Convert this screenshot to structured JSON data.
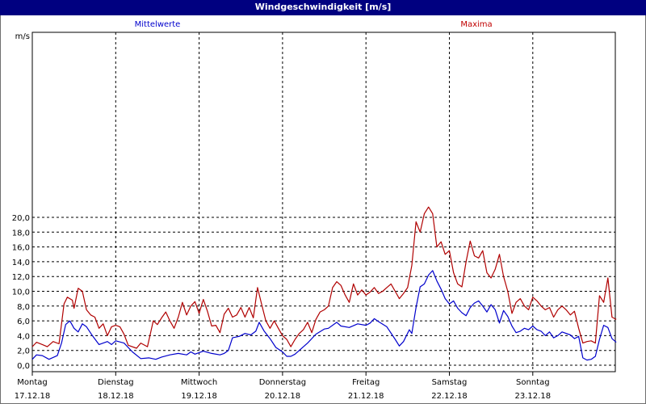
{
  "window": {
    "title": "Windgeschwindigkeit [m/s]"
  },
  "chart_data": {
    "type": "line",
    "title": "Windgeschwindigkeit [m/s]",
    "ylabel": "m/s",
    "ylim": [
      0,
      22
    ],
    "xlim": [
      0,
      7
    ],
    "grid": true,
    "legend": [
      "Mittelwerte",
      "Maxima"
    ],
    "ytick_values": [
      0,
      2,
      4,
      6,
      8,
      10,
      12,
      14,
      16,
      18,
      20
    ],
    "ytick_labels": [
      "0,0",
      "2,0",
      "4,0",
      "6,0",
      "8,0",
      "10,0",
      "12,0",
      "14,0",
      "16,0",
      "18,0",
      "20,0"
    ],
    "xtick_values": [
      0,
      1,
      2,
      3,
      4,
      5,
      6
    ],
    "xtick_days": [
      "Montag",
      "Dienstag",
      "Mittwoch",
      "Donnerstag",
      "Freitag",
      "Samstag",
      "Sonntag"
    ],
    "xtick_dates": [
      "17.12.18",
      "18.12.18",
      "19.12.18",
      "20.12.18",
      "21.12.18",
      "22.12.18",
      "23.12.18"
    ],
    "series": [
      {
        "name": "Mittelwerte",
        "color": "#0000cc",
        "points": [
          [
            0.0,
            0.8
          ],
          [
            0.05,
            1.4
          ],
          [
            0.12,
            1.3
          ],
          [
            0.2,
            0.8
          ],
          [
            0.3,
            1.3
          ],
          [
            0.35,
            3.0
          ],
          [
            0.4,
            5.5
          ],
          [
            0.45,
            6.0
          ],
          [
            0.5,
            5.0
          ],
          [
            0.55,
            4.5
          ],
          [
            0.6,
            5.6
          ],
          [
            0.65,
            5.2
          ],
          [
            0.72,
            4.0
          ],
          [
            0.8,
            2.8
          ],
          [
            0.9,
            3.2
          ],
          [
            0.95,
            2.8
          ],
          [
            1.0,
            3.3
          ],
          [
            1.1,
            3.0
          ],
          [
            1.2,
            1.8
          ],
          [
            1.3,
            0.9
          ],
          [
            1.4,
            1.0
          ],
          [
            1.48,
            0.8
          ],
          [
            1.55,
            1.1
          ],
          [
            1.65,
            1.4
          ],
          [
            1.75,
            1.6
          ],
          [
            1.85,
            1.4
          ],
          [
            1.9,
            1.8
          ],
          [
            1.95,
            1.5
          ],
          [
            2.05,
            1.9
          ],
          [
            2.15,
            1.6
          ],
          [
            2.25,
            1.4
          ],
          [
            2.3,
            1.6
          ],
          [
            2.35,
            2.0
          ],
          [
            2.4,
            3.7
          ],
          [
            2.48,
            3.9
          ],
          [
            2.55,
            4.3
          ],
          [
            2.62,
            4.1
          ],
          [
            2.68,
            4.6
          ],
          [
            2.72,
            5.8
          ],
          [
            2.78,
            4.6
          ],
          [
            2.85,
            3.6
          ],
          [
            2.92,
            2.4
          ],
          [
            3.0,
            1.8
          ],
          [
            3.05,
            1.2
          ],
          [
            3.1,
            1.2
          ],
          [
            3.15,
            1.5
          ],
          [
            3.2,
            2.0
          ],
          [
            3.3,
            3.0
          ],
          [
            3.4,
            4.2
          ],
          [
            3.5,
            4.9
          ],
          [
            3.55,
            5.0
          ],
          [
            3.65,
            5.8
          ],
          [
            3.7,
            5.3
          ],
          [
            3.8,
            5.1
          ],
          [
            3.9,
            5.6
          ],
          [
            4.0,
            5.4
          ],
          [
            4.05,
            5.7
          ],
          [
            4.1,
            6.3
          ],
          [
            4.15,
            5.9
          ],
          [
            4.25,
            5.2
          ],
          [
            4.35,
            3.5
          ],
          [
            4.4,
            2.6
          ],
          [
            4.45,
            3.2
          ],
          [
            4.52,
            4.8
          ],
          [
            4.55,
            4.3
          ],
          [
            4.6,
            7.8
          ],
          [
            4.65,
            10.6
          ],
          [
            4.7,
            11.0
          ],
          [
            4.75,
            12.2
          ],
          [
            4.8,
            12.8
          ],
          [
            4.85,
            11.4
          ],
          [
            4.9,
            10.3
          ],
          [
            4.95,
            9.0
          ],
          [
            5.0,
            8.3
          ],
          [
            5.05,
            8.7
          ],
          [
            5.1,
            7.7
          ],
          [
            5.15,
            7.1
          ],
          [
            5.2,
            6.7
          ],
          [
            5.25,
            7.8
          ],
          [
            5.3,
            8.4
          ],
          [
            5.35,
            8.7
          ],
          [
            5.4,
            8.0
          ],
          [
            5.45,
            7.2
          ],
          [
            5.5,
            8.2
          ],
          [
            5.55,
            7.5
          ],
          [
            5.6,
            5.7
          ],
          [
            5.65,
            7.4
          ],
          [
            5.7,
            6.6
          ],
          [
            5.75,
            5.3
          ],
          [
            5.8,
            4.4
          ],
          [
            5.85,
            4.6
          ],
          [
            5.9,
            5.0
          ],
          [
            5.95,
            4.8
          ],
          [
            6.0,
            5.3
          ],
          [
            6.05,
            4.8
          ],
          [
            6.1,
            4.6
          ],
          [
            6.15,
            4.0
          ],
          [
            6.2,
            4.5
          ],
          [
            6.25,
            3.7
          ],
          [
            6.3,
            4.0
          ],
          [
            6.35,
            4.5
          ],
          [
            6.45,
            4.1
          ],
          [
            6.5,
            3.6
          ],
          [
            6.55,
            3.9
          ],
          [
            6.6,
            1.0
          ],
          [
            6.65,
            0.7
          ],
          [
            6.7,
            0.8
          ],
          [
            6.75,
            1.2
          ],
          [
            6.8,
            3.5
          ],
          [
            6.85,
            5.4
          ],
          [
            6.9,
            5.1
          ],
          [
            6.95,
            3.6
          ],
          [
            7.0,
            3.1
          ]
        ]
      },
      {
        "name": "Maxima",
        "color": "#b00000",
        "points": [
          [
            0.0,
            2.5
          ],
          [
            0.05,
            3.1
          ],
          [
            0.12,
            2.8
          ],
          [
            0.18,
            2.5
          ],
          [
            0.25,
            3.2
          ],
          [
            0.32,
            2.9
          ],
          [
            0.38,
            8.3
          ],
          [
            0.42,
            9.2
          ],
          [
            0.48,
            8.8
          ],
          [
            0.5,
            7.7
          ],
          [
            0.55,
            10.4
          ],
          [
            0.6,
            10.0
          ],
          [
            0.65,
            7.5
          ],
          [
            0.7,
            6.8
          ],
          [
            0.75,
            6.5
          ],
          [
            0.8,
            5.0
          ],
          [
            0.85,
            5.6
          ],
          [
            0.9,
            4.0
          ],
          [
            0.95,
            5.2
          ],
          [
            1.0,
            5.4
          ],
          [
            1.05,
            5.2
          ],
          [
            1.1,
            4.2
          ],
          [
            1.15,
            2.7
          ],
          [
            1.25,
            2.3
          ],
          [
            1.3,
            3.0
          ],
          [
            1.38,
            2.5
          ],
          [
            1.45,
            6.0
          ],
          [
            1.5,
            5.5
          ],
          [
            1.55,
            6.4
          ],
          [
            1.6,
            7.2
          ],
          [
            1.65,
            6.0
          ],
          [
            1.7,
            5.0
          ],
          [
            1.75,
            6.5
          ],
          [
            1.8,
            8.5
          ],
          [
            1.85,
            6.8
          ],
          [
            1.9,
            8.0
          ],
          [
            1.95,
            8.6
          ],
          [
            2.0,
            7.0
          ],
          [
            2.05,
            8.9
          ],
          [
            2.1,
            7.3
          ],
          [
            2.15,
            5.3
          ],
          [
            2.2,
            5.4
          ],
          [
            2.25,
            4.4
          ],
          [
            2.3,
            6.9
          ],
          [
            2.35,
            7.7
          ],
          [
            2.4,
            6.5
          ],
          [
            2.45,
            6.8
          ],
          [
            2.5,
            7.8
          ],
          [
            2.55,
            6.5
          ],
          [
            2.6,
            7.8
          ],
          [
            2.65,
            6.4
          ],
          [
            2.7,
            10.5
          ],
          [
            2.75,
            8.2
          ],
          [
            2.8,
            6.0
          ],
          [
            2.85,
            5.0
          ],
          [
            2.9,
            6.0
          ],
          [
            2.95,
            5.0
          ],
          [
            3.0,
            4.0
          ],
          [
            3.05,
            3.5
          ],
          [
            3.1,
            2.5
          ],
          [
            3.15,
            3.5
          ],
          [
            3.2,
            4.3
          ],
          [
            3.25,
            4.8
          ],
          [
            3.3,
            5.8
          ],
          [
            3.35,
            4.4
          ],
          [
            3.4,
            6.2
          ],
          [
            3.45,
            7.2
          ],
          [
            3.5,
            7.5
          ],
          [
            3.55,
            8.0
          ],
          [
            3.6,
            10.5
          ],
          [
            3.65,
            11.3
          ],
          [
            3.7,
            10.8
          ],
          [
            3.75,
            9.5
          ],
          [
            3.8,
            8.5
          ],
          [
            3.85,
            11.0
          ],
          [
            3.9,
            9.5
          ],
          [
            3.95,
            10.2
          ],
          [
            4.0,
            9.5
          ],
          [
            4.05,
            9.9
          ],
          [
            4.1,
            10.5
          ],
          [
            4.15,
            9.7
          ],
          [
            4.2,
            10.0
          ],
          [
            4.25,
            10.5
          ],
          [
            4.3,
            11.0
          ],
          [
            4.35,
            10.0
          ],
          [
            4.4,
            9.0
          ],
          [
            4.45,
            9.7
          ],
          [
            4.5,
            10.5
          ],
          [
            4.55,
            13.5
          ],
          [
            4.6,
            19.4
          ],
          [
            4.65,
            18.0
          ],
          [
            4.7,
            20.5
          ],
          [
            4.75,
            21.4
          ],
          [
            4.8,
            20.5
          ],
          [
            4.85,
            16.0
          ],
          [
            4.9,
            16.7
          ],
          [
            4.95,
            15.0
          ],
          [
            5.0,
            15.5
          ],
          [
            5.05,
            12.5
          ],
          [
            5.1,
            11.0
          ],
          [
            5.15,
            10.6
          ],
          [
            5.2,
            14.0
          ],
          [
            5.25,
            16.8
          ],
          [
            5.3,
            14.8
          ],
          [
            5.35,
            14.5
          ],
          [
            5.4,
            15.5
          ],
          [
            5.45,
            12.5
          ],
          [
            5.5,
            11.8
          ],
          [
            5.55,
            13.0
          ],
          [
            5.6,
            15.0
          ],
          [
            5.65,
            12.0
          ],
          [
            5.7,
            10.0
          ],
          [
            5.75,
            7.0
          ],
          [
            5.8,
            8.5
          ],
          [
            5.85,
            9.0
          ],
          [
            5.9,
            8.0
          ],
          [
            5.95,
            7.5
          ],
          [
            6.0,
            9.2
          ],
          [
            6.05,
            8.7
          ],
          [
            6.1,
            8.0
          ],
          [
            6.15,
            7.5
          ],
          [
            6.2,
            7.8
          ],
          [
            6.25,
            6.5
          ],
          [
            6.3,
            7.5
          ],
          [
            6.35,
            8.0
          ],
          [
            6.4,
            7.5
          ],
          [
            6.45,
            6.8
          ],
          [
            6.5,
            7.3
          ],
          [
            6.55,
            5.0
          ],
          [
            6.6,
            3.0
          ],
          [
            6.65,
            3.2
          ],
          [
            6.7,
            3.3
          ],
          [
            6.75,
            3.0
          ],
          [
            6.8,
            9.4
          ],
          [
            6.85,
            8.5
          ],
          [
            6.9,
            11.8
          ],
          [
            6.95,
            6.5
          ],
          [
            7.0,
            6.2
          ]
        ]
      }
    ]
  }
}
